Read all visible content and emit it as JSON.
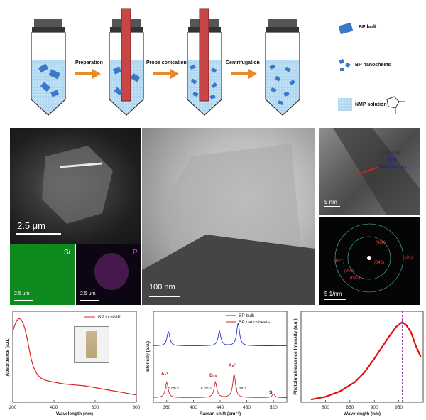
{
  "schematic": {
    "steps": [
      "Preparation",
      "Probe sonication",
      "Centrifugation"
    ],
    "legend": [
      "BP bulk",
      "BP nanosheets",
      "NMP solution"
    ]
  },
  "sem": {
    "scale": "2.5 μm"
  },
  "eds": {
    "si_label": "Si",
    "p_label": "P",
    "si_scale": "2.5 μm",
    "p_scale": "2.5 μm"
  },
  "tem": {
    "scale": "100 nm"
  },
  "hrtem": {
    "annotation": [
      "d=0.52 nm",
      "(020)",
      "Black phosphrus"
    ],
    "scale": "5 nm"
  },
  "saed": {
    "scale": "5 1/nm",
    "spots": [
      "(060)",
      "(021)",
      "(040)",
      "(002)",
      "(022)",
      "(101)"
    ]
  },
  "chart_data": [
    {
      "type": "line",
      "title": "",
      "xlabel": "Wavelength (nm)",
      "ylabel": "Absorbance (a.u.)",
      "xlim": [
        200,
        800
      ],
      "xticks": [
        "200",
        "400",
        "600",
        "800"
      ],
      "series": [
        {
          "name": "BP in NMP",
          "color": "#e02020",
          "x": [
            200,
            210,
            220,
            230,
            240,
            250,
            260,
            270,
            280,
            290,
            300,
            320,
            340,
            360,
            400,
            450,
            500,
            550,
            600,
            650,
            700,
            750,
            800
          ],
          "y": [
            0.78,
            0.85,
            0.9,
            0.92,
            0.91,
            0.87,
            0.8,
            0.7,
            0.58,
            0.47,
            0.39,
            0.3,
            0.26,
            0.24,
            0.22,
            0.2,
            0.19,
            0.18,
            0.16,
            0.14,
            0.12,
            0.1,
            0.08
          ]
        }
      ]
    },
    {
      "type": "line",
      "title": "",
      "xlabel": "Raman shift (cm⁻¹)",
      "ylabel": "Intensity (a.u.)",
      "xlim": [
        340,
        540
      ],
      "xticks": [
        "360",
        "400",
        "440",
        "480",
        "520"
      ],
      "peak_labels": [
        "A₉¹",
        "B₂₉",
        "A₉²",
        "Si"
      ],
      "shift_labels": [
        "2.5 cm⁻¹",
        "6 cm⁻¹",
        "6 cm⁻¹"
      ],
      "series": [
        {
          "name": "BP bulk",
          "color": "#2030d0",
          "peaks": [
            362.5,
            439,
            467
          ]
        },
        {
          "name": "BP nanosheets",
          "color": "#d02020",
          "peaks": [
            360,
            433,
            461,
            520
          ]
        }
      ]
    },
    {
      "type": "line",
      "title": "",
      "xlabel": "Wavelength (nm)",
      "ylabel": "Photoluminescence Intensity (a.u.)",
      "xlim": [
        750,
        1000
      ],
      "xticks": [
        "800",
        "850",
        "900",
        "950"
      ],
      "peak_marker": 957,
      "series": [
        {
          "name": "",
          "color": "#e01010",
          "x": [
            770,
            800,
            830,
            860,
            880,
            900,
            915,
            930,
            945,
            957,
            965,
            975,
            985,
            995
          ],
          "y": [
            0.03,
            0.06,
            0.12,
            0.22,
            0.33,
            0.48,
            0.6,
            0.72,
            0.83,
            0.88,
            0.85,
            0.77,
            0.62,
            0.5
          ]
        }
      ]
    }
  ]
}
